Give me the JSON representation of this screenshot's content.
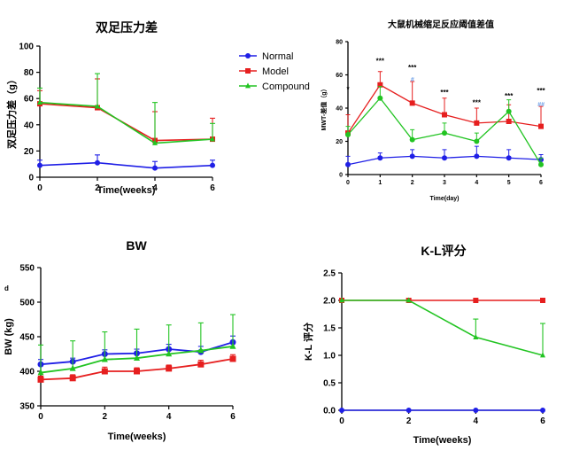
{
  "chart_data": [
    {
      "id": "p1",
      "type": "line",
      "title": "双足压力差",
      "xlabel": "Time(weeks)",
      "ylabel": "双足压力差（g）",
      "xlim": [
        0,
        6
      ],
      "ylim": [
        0,
        100
      ],
      "xticks": [
        "0",
        "2",
        "4",
        "6"
      ],
      "yticks": [
        "0",
        "20",
        "40",
        "60",
        "80",
        "100"
      ],
      "legend_position": "right",
      "x": [
        0,
        2,
        4,
        6
      ],
      "series": [
        {
          "name": "Normal",
          "color": "#1f1fe6",
          "marker": "circle",
          "values": [
            9,
            11,
            7,
            9
          ],
          "errors": [
            4,
            6,
            5,
            4
          ]
        },
        {
          "name": "Model",
          "color": "#e61f1f",
          "marker": "square",
          "values": [
            56,
            53,
            28,
            29
          ],
          "errors": [
            10,
            22,
            22,
            16
          ]
        },
        {
          "name": "Compound",
          "color": "#22c422",
          "marker": "triangle",
          "values": [
            57,
            54,
            26,
            29
          ],
          "errors": [
            11,
            25,
            31,
            12
          ]
        }
      ]
    },
    {
      "id": "p2",
      "type": "line",
      "title": "大鼠机械缩足反应阈值差值",
      "xlabel": "Time(day)",
      "ylabel": "MWT-差值（g）",
      "xlim": [
        0,
        6
      ],
      "ylim": [
        0,
        80
      ],
      "xticks": [
        "0",
        "1",
        "2",
        "3",
        "4",
        "5",
        "6"
      ],
      "yticks": [
        "0",
        "20",
        "40",
        "60",
        "80"
      ],
      "x": [
        0,
        1,
        2,
        3,
        4,
        5,
        6
      ],
      "series": [
        {
          "name": "Normal",
          "color": "#1f1fe6",
          "marker": "circle",
          "values": [
            6,
            10,
            11,
            10,
            11,
            10,
            9
          ],
          "errors": [
            5,
            3,
            4,
            5,
            6,
            5,
            3
          ]
        },
        {
          "name": "Model",
          "color": "#e61f1f",
          "marker": "square",
          "values": [
            25,
            54,
            43,
            36,
            31,
            32,
            29
          ],
          "errors": [
            11,
            8,
            13,
            10,
            9,
            10,
            12
          ]
        },
        {
          "name": "Compound",
          "color": "#22c422",
          "marker": "circle",
          "values": [
            24,
            46,
            21,
            25,
            20,
            38,
            6
          ],
          "errors": [
            5,
            7,
            6,
            6,
            5,
            7,
            4
          ]
        }
      ],
      "annotations": [
        {
          "text": "*",
          "x": 0,
          "y": 50
        },
        {
          "text": "***",
          "x": 1,
          "y": 67
        },
        {
          "text": "***",
          "x": 2,
          "y": 63
        },
        {
          "text": "***",
          "x": 3,
          "y": 48
        },
        {
          "text": "***",
          "x": 4,
          "y": 42
        },
        {
          "text": "***",
          "x": 5,
          "y": 46
        },
        {
          "text": "***",
          "x": 6,
          "y": 49
        }
      ],
      "blue_annotations": [
        {
          "text": "#",
          "x": 2,
          "y": 56
        },
        {
          "text": "##",
          "x": 6,
          "y": 41
        }
      ]
    },
    {
      "id": "p3",
      "type": "line",
      "title": "BW",
      "xlabel": "Time(weeks)",
      "ylabel": "BW (kg)",
      "xlim": [
        0,
        6
      ],
      "ylim": [
        350,
        550
      ],
      "xticks": [
        "0",
        "2",
        "4",
        "6"
      ],
      "yticks": [
        "350",
        "400",
        "450",
        "500",
        "550"
      ],
      "panel_letter": "d",
      "x": [
        0,
        1,
        2,
        3,
        4,
        5,
        6
      ],
      "series": [
        {
          "name": "Normal",
          "color": "#1f1fe6",
          "marker": "circle",
          "values": [
            410,
            414,
            425,
            426,
            432,
            428,
            442
          ],
          "errors": [
            7,
            5,
            6,
            6,
            7,
            8,
            9
          ]
        },
        {
          "name": "Model",
          "color": "#e61f1f",
          "marker": "square",
          "values": [
            388,
            390,
            400,
            400,
            404,
            410,
            418
          ],
          "errors": [
            5,
            5,
            6,
            5,
            5,
            6,
            6
          ]
        },
        {
          "name": "Compound",
          "color": "#22c422",
          "marker": "triangle",
          "values": [
            398,
            404,
            417,
            419,
            425,
            430,
            436
          ],
          "errors": [
            40,
            40,
            40,
            42,
            42,
            40,
            46
          ]
        }
      ]
    },
    {
      "id": "p4",
      "type": "line",
      "title": "K-L评分",
      "xlabel": "Time(weeks)",
      "ylabel": "K-L 评分",
      "xlim": [
        0,
        6
      ],
      "ylim": [
        0,
        2.5
      ],
      "xticks": [
        "0",
        "2",
        "4",
        "6"
      ],
      "yticks": [
        "0.0",
        "0.5",
        "1.0",
        "1.5",
        "2.0",
        "2.5"
      ],
      "x": [
        0,
        2,
        4,
        6
      ],
      "series": [
        {
          "name": "Normal",
          "color": "#1f1fe6",
          "marker": "circle",
          "values": [
            0,
            0,
            0,
            0
          ],
          "errors": [
            0,
            0,
            0,
            0
          ]
        },
        {
          "name": "Model",
          "color": "#e61f1f",
          "marker": "square",
          "values": [
            2,
            2,
            2,
            2
          ],
          "errors": [
            0,
            0,
            0,
            0
          ]
        },
        {
          "name": "Compound",
          "color": "#22c422",
          "marker": "triangle",
          "values": [
            2,
            2,
            1.33,
            1
          ],
          "errors": [
            0,
            0,
            0.33,
            0.58
          ]
        }
      ]
    }
  ]
}
